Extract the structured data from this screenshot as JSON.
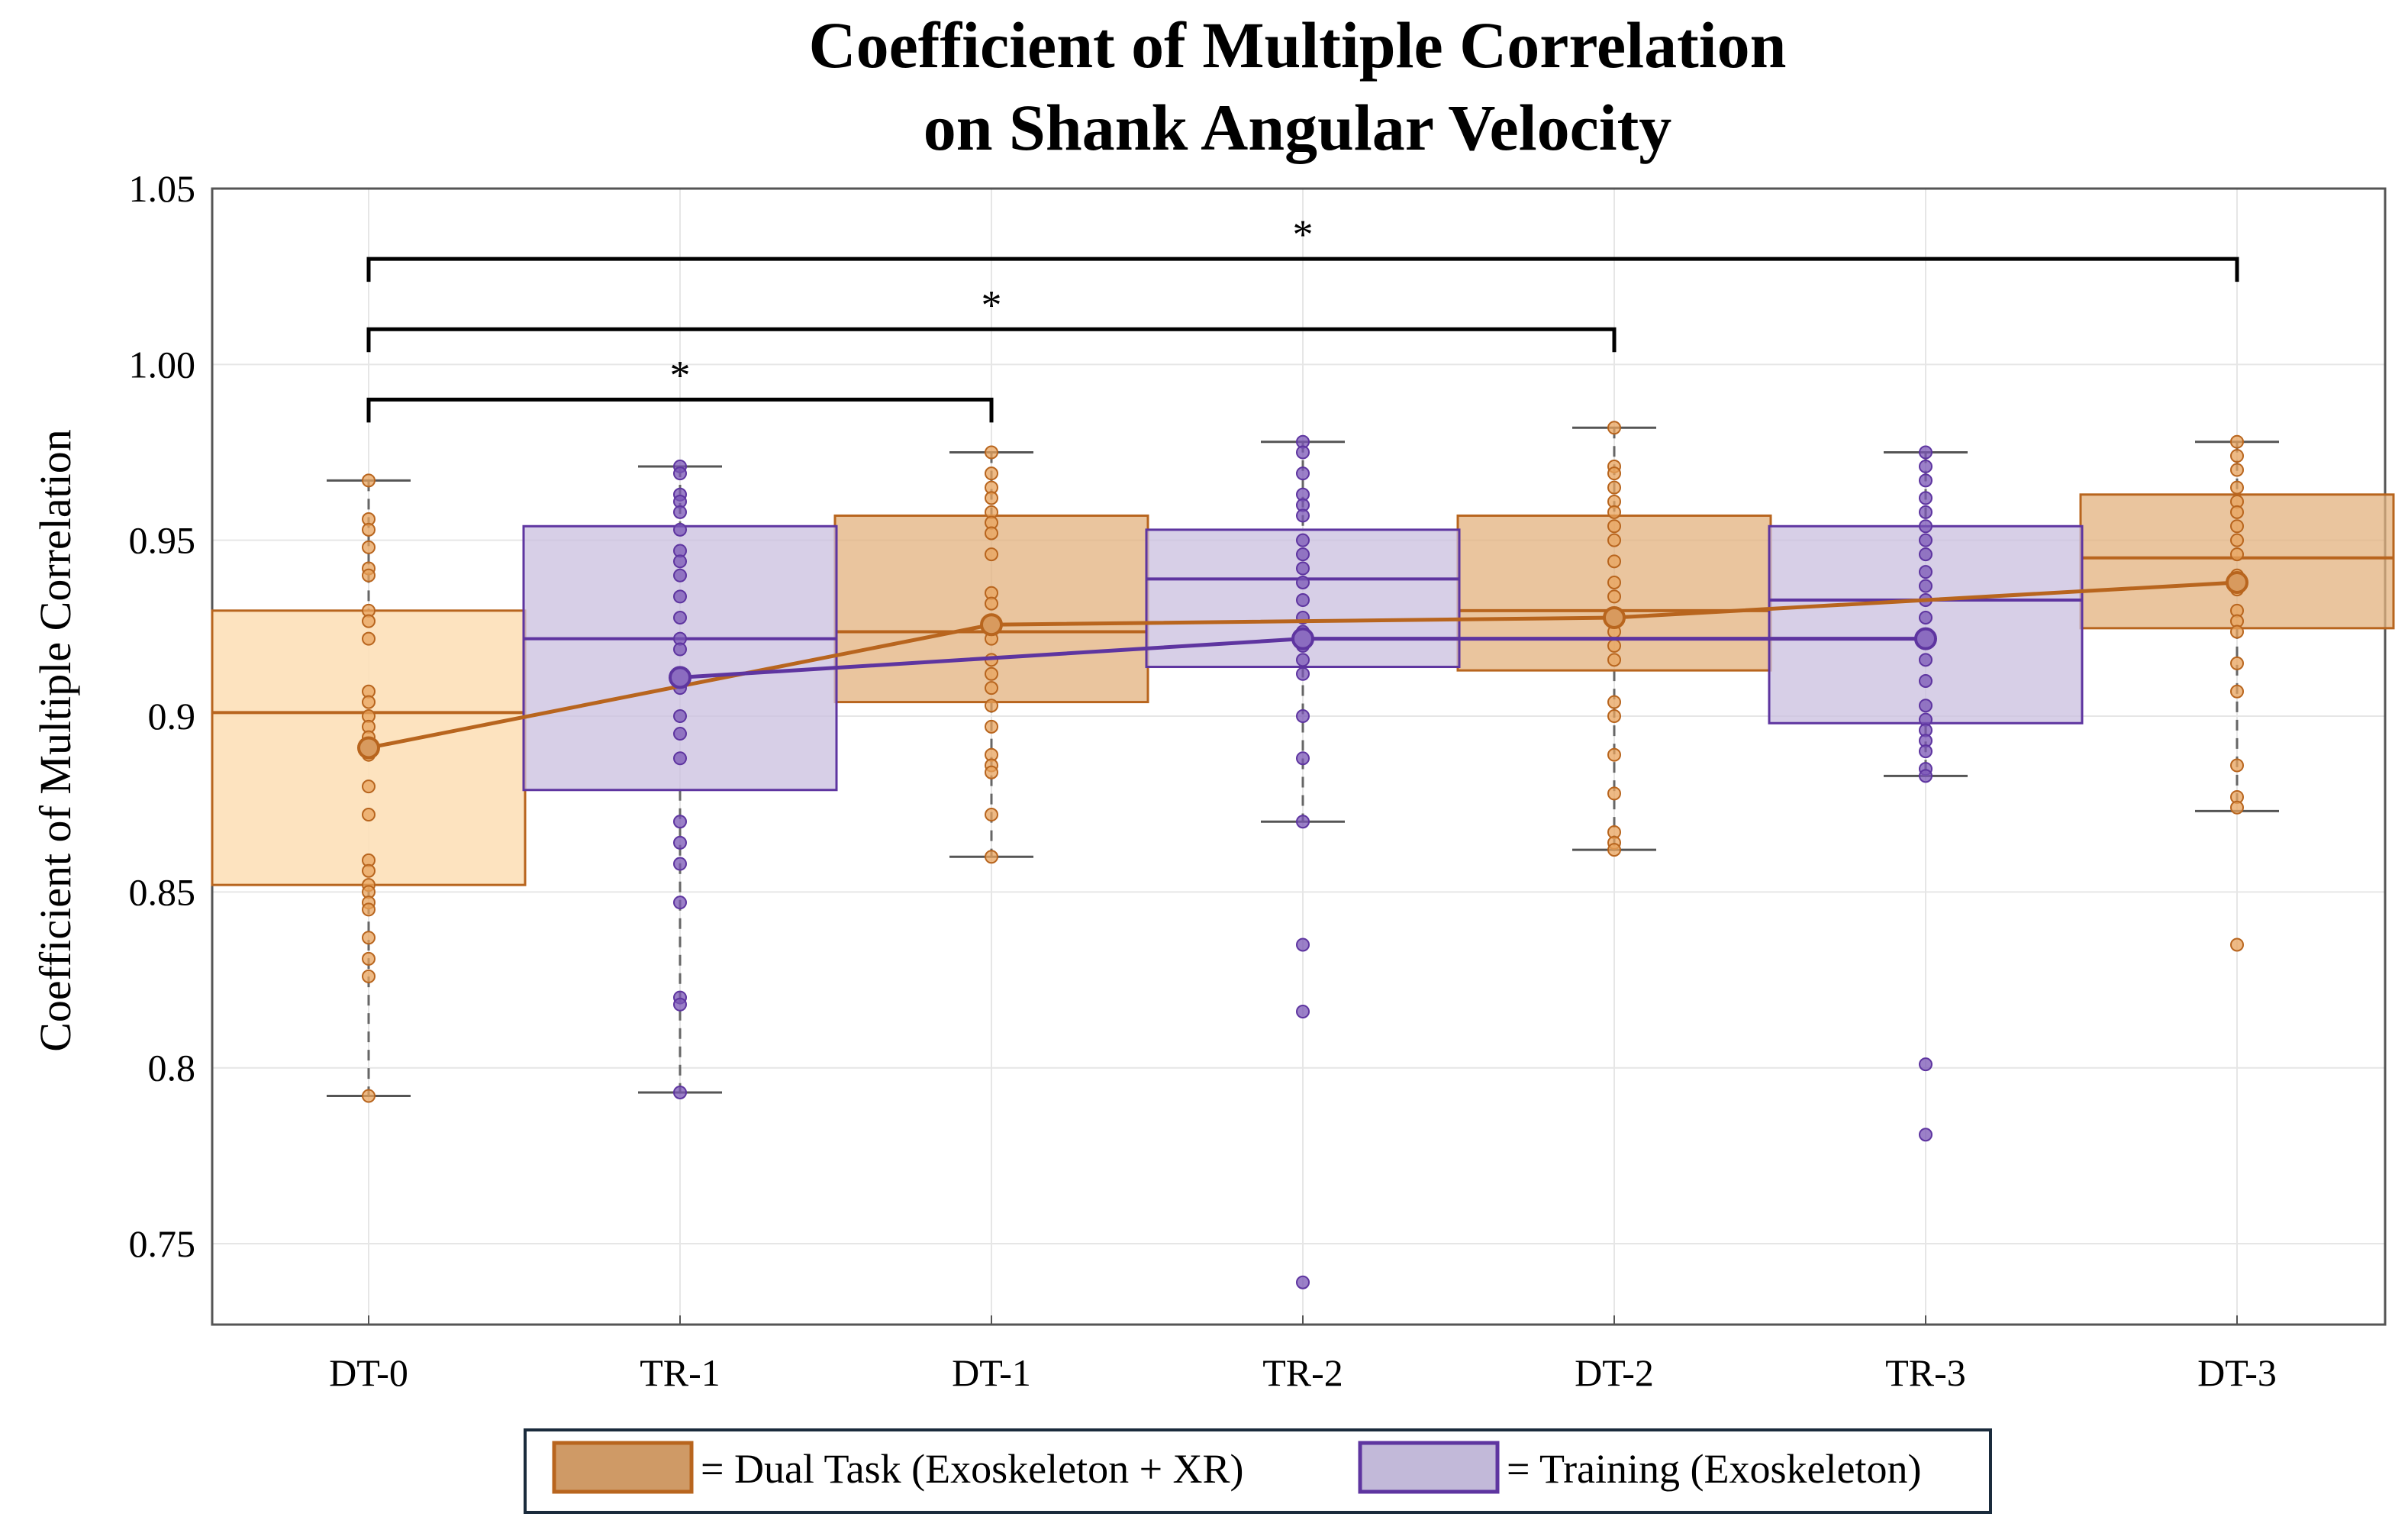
{
  "chart_data": {
    "type": "box",
    "title": [
      "Coefficient of Multiple Correlation",
      "on Shank Angular Velocity"
    ],
    "xlabel": "",
    "ylabel": "Coefficient of Multiple Correlation",
    "categories": [
      "DT-0",
      "TR-1",
      "DT-1",
      "TR-2",
      "DT-2",
      "TR-3",
      "DT-3"
    ],
    "ylim": [
      0.727,
      1.05
    ],
    "yticks": [
      0.75,
      0.8,
      0.85,
      0.9,
      0.95,
      1.0,
      1.05
    ],
    "ytick_labels": [
      "0.75",
      "0.8",
      "0.85",
      "0.9",
      "0.95",
      "1.00",
      "1.05"
    ],
    "grid": true,
    "legend_position": "bottom",
    "series": [
      {
        "name": "= Dual Task (Exoskeleton + XR)",
        "group": "dual",
        "positions": [
          0,
          2,
          4,
          6
        ],
        "color": "#b8651e",
        "boxes": [
          {
            "category": "DT-0",
            "q1": 0.852,
            "median": 0.901,
            "q3": 0.93,
            "whisker_low": 0.792,
            "whisker_high": 0.967,
            "mean": 0.891,
            "points": [
              0.967,
              0.956,
              0.953,
              0.948,
              0.942,
              0.94,
              0.93,
              0.927,
              0.922,
              0.907,
              0.904,
              0.9,
              0.897,
              0.894,
              0.889,
              0.88,
              0.872,
              0.859,
              0.856,
              0.852,
              0.85,
              0.847,
              0.845,
              0.837,
              0.831,
              0.826,
              0.792
            ]
          },
          {
            "category": "DT-1",
            "q1": 0.904,
            "median": 0.924,
            "q3": 0.957,
            "whisker_low": 0.86,
            "whisker_high": 0.975,
            "mean": 0.926,
            "points": [
              0.975,
              0.969,
              0.965,
              0.962,
              0.958,
              0.955,
              0.952,
              0.946,
              0.935,
              0.932,
              0.926,
              0.922,
              0.916,
              0.912,
              0.908,
              0.903,
              0.897,
              0.889,
              0.886,
              0.884,
              0.872,
              0.86
            ]
          },
          {
            "category": "DT-2",
            "q1": 0.913,
            "median": 0.93,
            "q3": 0.957,
            "whisker_low": 0.862,
            "whisker_high": 0.982,
            "mean": 0.928,
            "points": [
              0.982,
              0.971,
              0.969,
              0.965,
              0.961,
              0.958,
              0.954,
              0.95,
              0.944,
              0.938,
              0.934,
              0.928,
              0.924,
              0.92,
              0.916,
              0.904,
              0.9,
              0.889,
              0.878,
              0.867,
              0.864,
              0.862
            ]
          },
          {
            "category": "DT-3",
            "q1": 0.925,
            "median": 0.945,
            "q3": 0.963,
            "whisker_low": 0.873,
            "whisker_high": 0.978,
            "mean": 0.938,
            "points": [
              0.978,
              0.974,
              0.97,
              0.965,
              0.961,
              0.958,
              0.954,
              0.95,
              0.946,
              0.94,
              0.936,
              0.93,
              0.927,
              0.924,
              0.915,
              0.907,
              0.886,
              0.877,
              0.874,
              0.835
            ]
          }
        ],
        "means": [
          0.891,
          0.926,
          0.928,
          0.938
        ]
      },
      {
        "name": "= Training (Exoskeleton)",
        "group": "training",
        "positions": [
          1,
          3,
          5
        ],
        "color": "#5e35a0",
        "boxes": [
          {
            "category": "TR-1",
            "q1": 0.879,
            "median": 0.922,
            "q3": 0.954,
            "whisker_low": 0.793,
            "whisker_high": 0.971,
            "mean": 0.911,
            "points": [
              0.971,
              0.969,
              0.963,
              0.961,
              0.958,
              0.953,
              0.947,
              0.944,
              0.94,
              0.934,
              0.928,
              0.922,
              0.919,
              0.911,
              0.908,
              0.9,
              0.895,
              0.888,
              0.87,
              0.864,
              0.858,
              0.847,
              0.82,
              0.818,
              0.793
            ]
          },
          {
            "category": "TR-2",
            "q1": 0.914,
            "median": 0.939,
            "q3": 0.953,
            "whisker_low": 0.87,
            "whisker_high": 0.978,
            "mean": 0.922,
            "points": [
              0.978,
              0.975,
              0.969,
              0.963,
              0.96,
              0.957,
              0.95,
              0.946,
              0.942,
              0.938,
              0.933,
              0.928,
              0.924,
              0.92,
              0.916,
              0.912,
              0.9,
              0.888,
              0.87,
              0.835,
              0.816,
              0.739
            ]
          },
          {
            "category": "TR-3",
            "q1": 0.898,
            "median": 0.933,
            "q3": 0.954,
            "whisker_low": 0.883,
            "whisker_high": 0.975,
            "mean": 0.922,
            "points": [
              0.975,
              0.971,
              0.967,
              0.962,
              0.958,
              0.954,
              0.95,
              0.946,
              0.941,
              0.937,
              0.933,
              0.928,
              0.922,
              0.916,
              0.91,
              0.903,
              0.899,
              0.896,
              0.893,
              0.89,
              0.885,
              0.883,
              0.801,
              0.781
            ]
          }
        ],
        "means": [
          0.911,
          0.922,
          0.922
        ]
      }
    ],
    "significance": [
      {
        "from": "DT-0",
        "to": "DT-1",
        "label": "*",
        "y": 0.99
      },
      {
        "from": "DT-0",
        "to": "DT-2",
        "label": "*",
        "y": 1.01
      },
      {
        "from": "DT-0",
        "to": "DT-3",
        "label": "*",
        "y": 1.03
      }
    ],
    "colors": {
      "dual_fill_light": "#fde0b8",
      "dual_fill_dark": "#e3b27e",
      "dual_line": "#b8651e",
      "dual_point": "#e8a35c",
      "training_fill": "#c9bfdf",
      "training_line": "#5e35a0",
      "training_point": "#7a55b5",
      "grid": "#e6e6e6",
      "axis": "#555555"
    }
  }
}
